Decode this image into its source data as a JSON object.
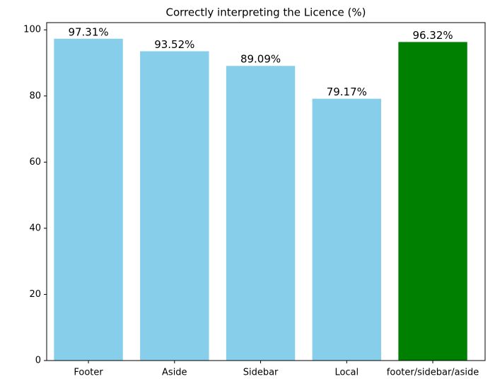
{
  "chart_data": {
    "type": "bar",
    "title": "Correctly interpreting the Licence (%)",
    "categories": [
      "Footer",
      "Aside",
      "Sidebar",
      "Local",
      "footer/sidebar/aside"
    ],
    "values": [
      97.31,
      93.52,
      89.09,
      79.17,
      96.32
    ],
    "value_labels": [
      "97.31%",
      "93.52%",
      "89.09%",
      "79.17%",
      "96.32%"
    ],
    "colors": [
      "#87ceeb",
      "#87ceeb",
      "#87ceeb",
      "#87ceeb",
      "#008000"
    ],
    "ylim": [
      0,
      102.18
    ],
    "yticks": [
      0,
      20,
      40,
      60,
      80,
      100
    ],
    "grid": false
  }
}
